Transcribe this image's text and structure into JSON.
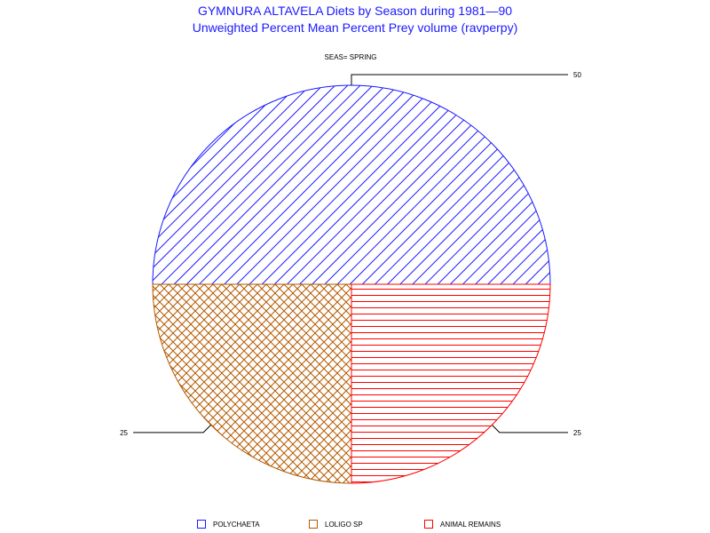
{
  "chart_data": {
    "type": "pie",
    "title": "GYMNURA ALTAVELA Diets by Season during 1981—90",
    "subtitle": "Unweighted Percent Mean Percent Prey  volume (ravperpy)",
    "group_label": "SEAS= SPRING",
    "slices": [
      {
        "label": "POLYCHAETA",
        "value": 50,
        "value_label": "50",
        "color": "#1a1aff",
        "pattern": "diagonal"
      },
      {
        "label": "LOLIGO SP",
        "value": 25,
        "value_label": "25",
        "color": "#b35900",
        "pattern": "crosshatch"
      },
      {
        "label": "ANIMAL REMAINS",
        "value": 25,
        "value_label": "25",
        "color": "#ff0000",
        "pattern": "horizontal"
      }
    ]
  }
}
